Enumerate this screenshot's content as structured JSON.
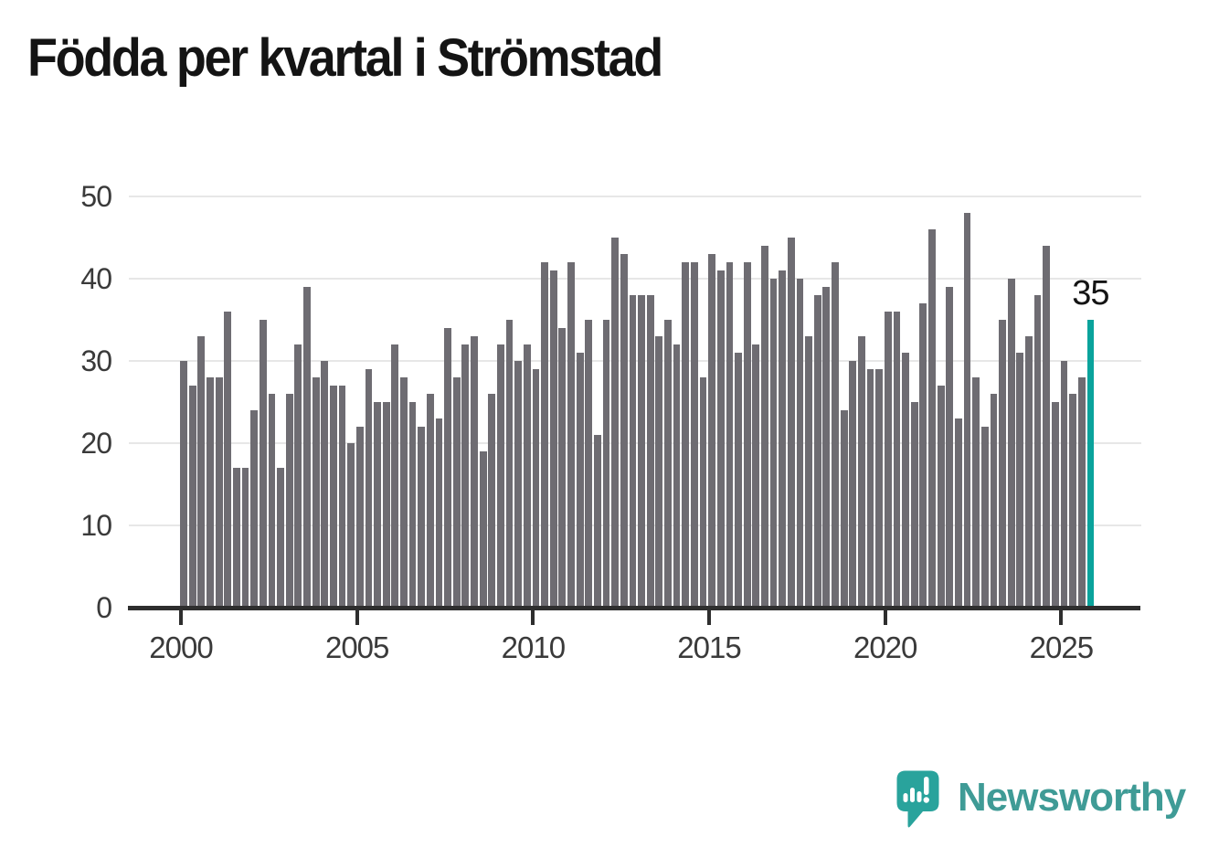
{
  "title": "Födda per kvartal i Strömstad",
  "annotation": {
    "label": "35"
  },
  "y_axis": {
    "tick_labels": [
      "0",
      "10",
      "20",
      "30",
      "40",
      "50"
    ]
  },
  "x_axis": {
    "tick_labels": [
      "2000",
      "2005",
      "2010",
      "2015",
      "2020",
      "2025"
    ]
  },
  "branding": {
    "name": "Newsworthy",
    "icon": "newsworthy-speech-bubble-bar-chart-icon"
  },
  "colors": {
    "bar": "#6e6c72",
    "highlight": "#0aa39c",
    "axis": "#2e2e2e",
    "grid": "#e7e7e7",
    "tick_label": "#3a3a3a",
    "title": "#141414",
    "annotation": "#141414",
    "brand_icon": "#29a39c",
    "brand_text": "#3f9b96",
    "background": "#ffffff"
  },
  "chart_data": {
    "type": "bar",
    "title": "Födda per kvartal i Strömstad",
    "start_period": "2000 Q1",
    "end_period": "2025 Q4",
    "periods_per_year": 4,
    "x_tick_labels": [
      "2000",
      "2005",
      "2010",
      "2015",
      "2020",
      "2025"
    ],
    "x_tick_every_n_bars": 20,
    "y_ticks": [
      0,
      10,
      20,
      30,
      40,
      50
    ],
    "ylim": [
      0,
      50
    ],
    "grid": "horizontal",
    "legend": "none",
    "values": [
      30,
      27,
      33,
      28,
      28,
      36,
      17,
      17,
      24,
      35,
      26,
      17,
      26,
      32,
      39,
      28,
      30,
      27,
      27,
      20,
      22,
      29,
      25,
      25,
      32,
      28,
      25,
      22,
      26,
      23,
      34,
      28,
      32,
      33,
      19,
      26,
      32,
      35,
      30,
      32,
      29,
      42,
      41,
      34,
      42,
      31,
      35,
      21,
      35,
      45,
      43,
      38,
      38,
      38,
      33,
      35,
      32,
      42,
      42,
      28,
      43,
      41,
      42,
      31,
      42,
      32,
      44,
      40,
      41,
      45,
      40,
      33,
      38,
      39,
      42,
      24,
      30,
      33,
      29,
      29,
      36,
      36,
      31,
      25,
      37,
      46,
      27,
      39,
      23,
      48,
      28,
      22,
      26,
      35,
      40,
      31,
      33,
      38,
      44,
      25,
      30,
      26,
      28,
      35
    ],
    "highlight_index": 103,
    "highlight_label": "35"
  }
}
